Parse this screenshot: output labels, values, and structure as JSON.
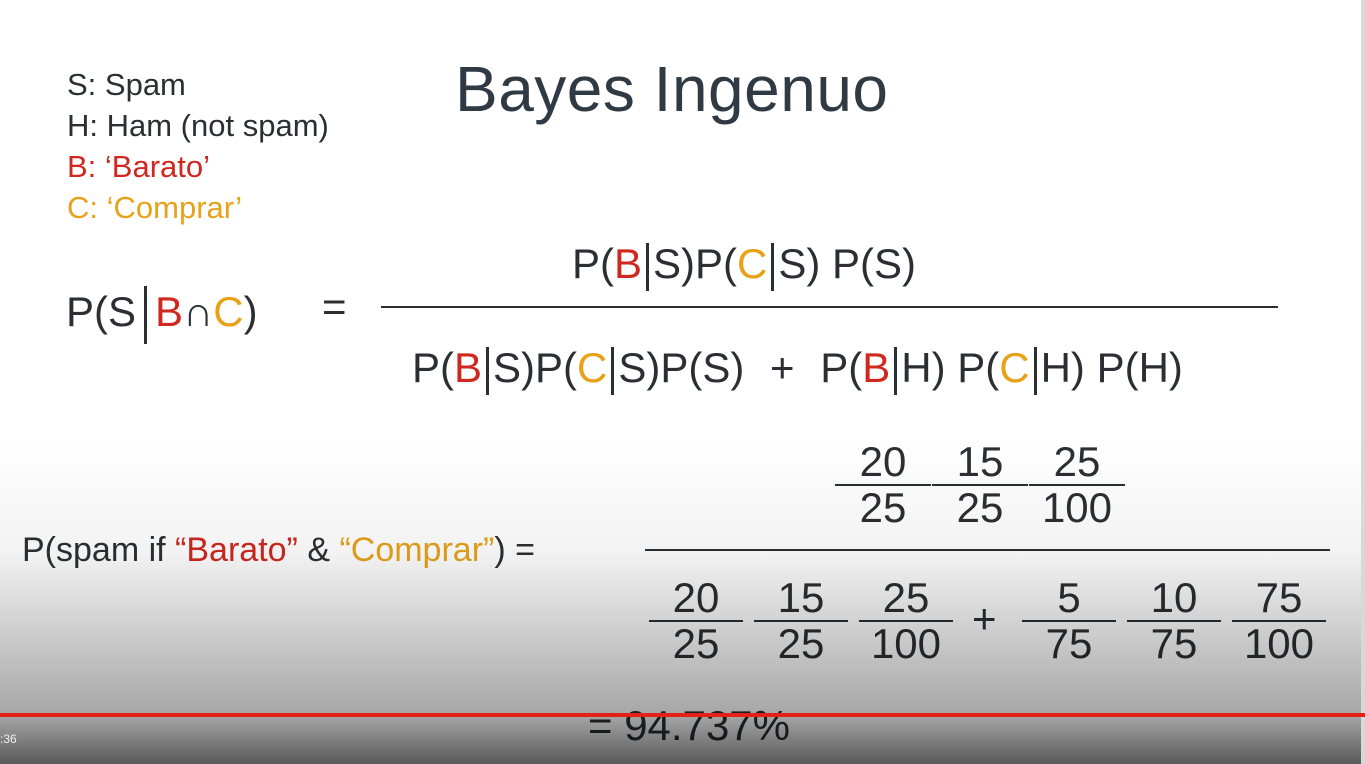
{
  "legend": {
    "s": "S: Spam",
    "h": "H: Ham (not spam)",
    "b": "B: ‘Barato’",
    "c": "C: ‘Comprar’"
  },
  "title": "Bayes Ingenuo",
  "formula": {
    "lhs_prefix": "P(S",
    "lhs_b": "B",
    "lhs_cap": "∩",
    "lhs_c": "C",
    "lhs_suffix": ")",
    "equals": "=",
    "num": {
      "p1": "P(",
      "b": "B",
      "s1": "S)",
      "p2": "P(",
      "c": "C",
      "s2": "S)",
      "ps": "P(S)"
    },
    "den": {
      "p1": "P(",
      "b": "B",
      "s1": "S)",
      "p2": "P(",
      "c": "C",
      "s2": "S)",
      "ps": "P(S)",
      "plus": "+",
      "p3": "P(",
      "b2": "B",
      "h1": "H)",
      "p4": "P(",
      "c2": "C",
      "h2": "H)",
      "ph": "P(H)"
    }
  },
  "calc": {
    "label_prefix": "P(spam if ",
    "label_b": "“Barato”",
    "label_amp": " & ",
    "label_c": "“Comprar”",
    "label_suffix": ") =",
    "top": [
      {
        "n": "20",
        "d": "25"
      },
      {
        "n": "15",
        "d": "25"
      },
      {
        "n": "25",
        "d": "100"
      }
    ],
    "bottom_left": [
      {
        "n": "20",
        "d": "25"
      },
      {
        "n": "15",
        "d": "25"
      },
      {
        "n": "25",
        "d": "100"
      }
    ],
    "plus": "+",
    "bottom_right": [
      {
        "n": "5",
        "d": "75"
      },
      {
        "n": "10",
        "d": "75"
      },
      {
        "n": "75",
        "d": "100"
      }
    ],
    "result": "=  94.737%"
  },
  "player": {
    "time": ":36",
    "progress_fraction": 1.0
  }
}
